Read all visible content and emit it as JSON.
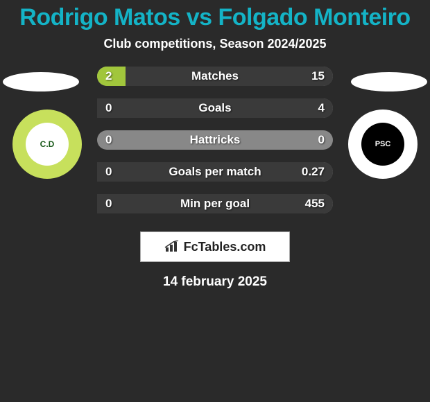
{
  "header": {
    "title": "Rodrigo Matos vs Folgado Monteiro",
    "title_color": "#14b3c6",
    "title_fontsize": 34,
    "subtitle": "Club competitions, Season 2024/2025",
    "subtitle_fontsize": 18
  },
  "left_player": {
    "flag_color": "#f5f5f5",
    "club_badge_bg": "#c7e05c",
    "club_inner_bg": "#ffffff",
    "club_initials": "C.D",
    "club_text_color": "#1a5a1a"
  },
  "right_player": {
    "flag_color": "#f5f5f5",
    "club_badge_bg": "#ffffff",
    "club_inner_bg": "#000000",
    "club_initials": "PSC",
    "club_text_color": "#ffffff"
  },
  "stats": {
    "bar_bg": "#888888",
    "left_fill_color": "#a1c63c",
    "right_fill_color": "#3a3a3a",
    "label_fontsize": 17,
    "value_fontsize": 17,
    "rows": [
      {
        "label": "Matches",
        "left_val": "2",
        "right_val": "15",
        "left_pct": 12,
        "right_pct": 88
      },
      {
        "label": "Goals",
        "left_val": "0",
        "right_val": "4",
        "left_pct": 0,
        "right_pct": 100
      },
      {
        "label": "Hattricks",
        "left_val": "0",
        "right_val": "0",
        "left_pct": 0,
        "right_pct": 0
      },
      {
        "label": "Goals per match",
        "left_val": "0",
        "right_val": "0.27",
        "left_pct": 0,
        "right_pct": 100
      },
      {
        "label": "Min per goal",
        "left_val": "0",
        "right_val": "455",
        "left_pct": 0,
        "right_pct": 100
      }
    ]
  },
  "brand": {
    "icon_name": "bar-chart-icon",
    "text": "FcTables.com"
  },
  "footer": {
    "date": "14 february 2025",
    "date_fontsize": 19
  },
  "colors": {
    "background": "#2a2a2a",
    "text": "#ffffff"
  }
}
